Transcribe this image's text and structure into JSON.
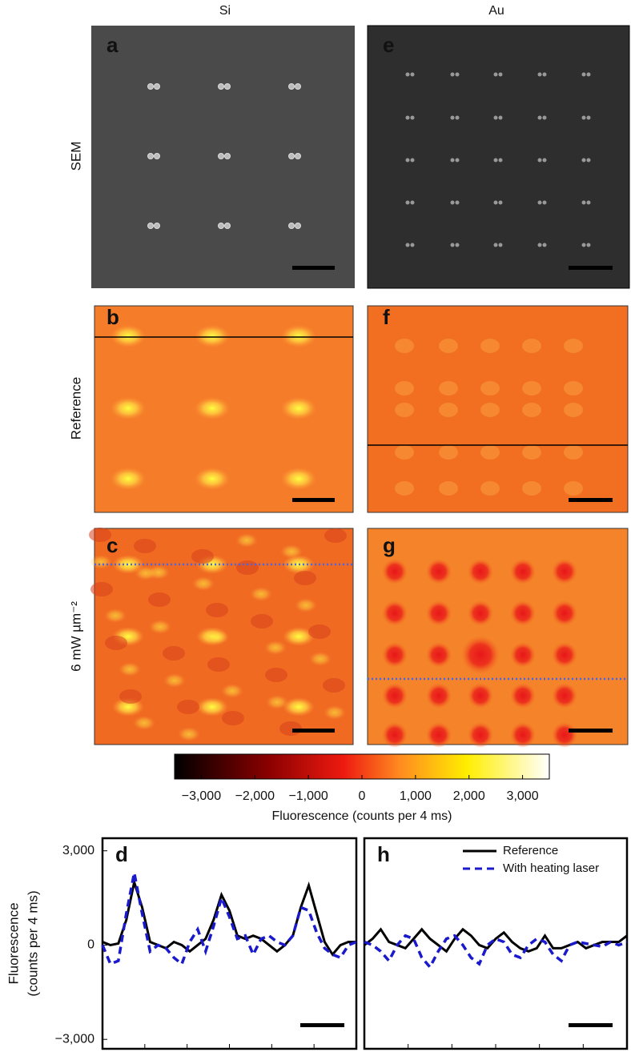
{
  "column_labels": [
    "Si",
    "Au"
  ],
  "row_labels": [
    "SEM",
    "Reference",
    "6 mW µm⁻²"
  ],
  "panel_letters": [
    "a",
    "b",
    "c",
    "e",
    "f",
    "g"
  ],
  "colorbar": {
    "lim": [
      -3500,
      3500
    ],
    "label": "Fluorescence (counts per 4 ms)",
    "ticks": [
      {
        "value": -3000,
        "label": "−3,000"
      },
      {
        "value": -2000,
        "label": "−2,000"
      },
      {
        "value": -1000,
        "label": "−1,000"
      },
      0,
      {
        "value": 1000,
        "label": "1,000"
      },
      {
        "value": 2000,
        "label": "2,000"
      },
      {
        "value": 3000,
        "label": "3,000"
      }
    ]
  },
  "chart_data": [
    {
      "type": "line",
      "panel": "d",
      "ylabel": [
        "Fluorescence",
        "(counts per 4 ms)"
      ],
      "x": [
        0,
        1,
        2,
        3,
        4,
        5,
        6,
        7,
        8,
        9,
        10,
        11,
        12,
        13,
        14,
        15,
        16,
        17,
        18,
        19,
        20,
        21,
        22,
        23,
        24,
        25,
        26,
        27,
        28,
        29,
        30,
        31,
        32
      ],
      "xlim": [
        0,
        32
      ],
      "ylim": [
        -3300,
        3400
      ],
      "yticks": [
        {
          "value": -3000,
          "label": "−3,000"
        },
        0,
        {
          "value": 3000,
          "label": "3,000"
        }
      ],
      "series": [
        {
          "color": "#000000",
          "style": "solid",
          "values": [
            100,
            0,
            50,
            800,
            2000,
            1200,
            100,
            0,
            -100,
            100,
            0,
            -200,
            0,
            200,
            800,
            1600,
            1100,
            300,
            200,
            300,
            200,
            0,
            -200,
            0,
            300,
            1200,
            1900,
            1000,
            100,
            -300,
            0,
            100,
            100
          ]
        },
        {
          "color": "#1a1acc",
          "style": "dashed",
          "values": [
            0,
            -600,
            -500,
            1000,
            2300,
            1000,
            -200,
            0,
            -100,
            -400,
            -600,
            100,
            500,
            -200,
            600,
            1500,
            900,
            200,
            300,
            -300,
            200,
            300,
            100,
            0,
            300,
            1200,
            1100,
            400,
            -100,
            -300,
            -400,
            0,
            100
          ]
        }
      ]
    },
    {
      "type": "line",
      "panel": "h",
      "legend": "upper right",
      "x": [
        0,
        1,
        2,
        3,
        4,
        5,
        6,
        7,
        8,
        9,
        10,
        11,
        12,
        13,
        14,
        15,
        16,
        17,
        18,
        19,
        20,
        21,
        22,
        23,
        24,
        25,
        26,
        27,
        28,
        29,
        30,
        31,
        32
      ],
      "xlim": [
        0,
        32
      ],
      "ylim": [
        -3300,
        3400
      ],
      "series": [
        {
          "name": "Reference",
          "color": "#000000",
          "style": "solid",
          "values": [
            0,
            200,
            500,
            100,
            0,
            -100,
            200,
            500,
            200,
            0,
            -200,
            200,
            500,
            300,
            0,
            -100,
            200,
            400,
            100,
            -100,
            -200,
            -100,
            300,
            -100,
            -100,
            0,
            100,
            -100,
            0,
            100,
            100,
            100,
            300
          ]
        },
        {
          "name": "With heating laser",
          "color": "#1a1acc",
          "style": "dashed",
          "values": [
            100,
            0,
            -200,
            -500,
            0,
            300,
            200,
            -400,
            -700,
            -200,
            200,
            300,
            0,
            -400,
            -600,
            0,
            200,
            100,
            -300,
            -400,
            0,
            200,
            100,
            -300,
            -500,
            0,
            100,
            50,
            0,
            -50,
            100,
            0,
            100
          ]
        }
      ]
    }
  ]
}
